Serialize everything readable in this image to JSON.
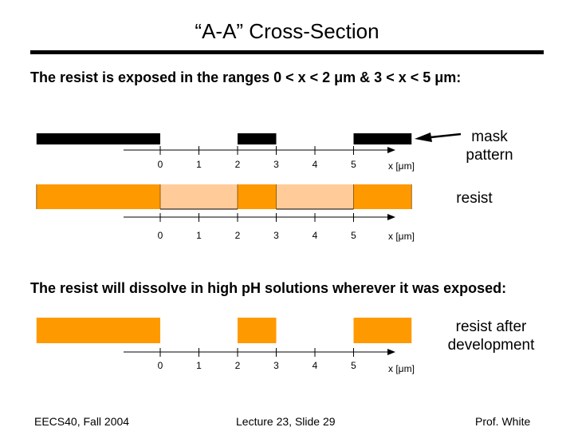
{
  "slide": {
    "title": "“A-A” Cross-Section",
    "intro": "The resist is exposed in the ranges 0 < x < 2 μm & 3 < x < 5 μm:",
    "dissolve_text": "The resist will dissolve in high pH solutions wherever it was exposed:"
  },
  "labels": {
    "mask_line1": "mask",
    "mask_line2": "pattern",
    "resist": "resist",
    "dev_line1": "resist after",
    "dev_line2": "development",
    "axis_unit": "x [μm]"
  },
  "axis": {
    "ticks": [
      "0",
      "1",
      "2",
      "3",
      "4",
      "5"
    ],
    "range": [
      0,
      6
    ]
  },
  "colors": {
    "resist": "#ff9900",
    "exposed": "#ffcc99",
    "mask": "#000000"
  },
  "cross_section": {
    "mask_opaque_x": [
      [
        -3.2,
        0
      ],
      [
        2,
        3
      ],
      [
        5,
        6.5
      ]
    ],
    "exposed_x": [
      [
        0,
        2
      ],
      [
        3,
        5
      ]
    ],
    "resist_extent_x": [
      -3.2,
      6.5
    ],
    "developed_resist_x": [
      [
        -3.2,
        0
      ],
      [
        2,
        3
      ],
      [
        5,
        6.5
      ]
    ]
  },
  "footer": {
    "left": "EECS40, Fall 2004",
    "center": "Lecture 23, Slide 29",
    "right": "Prof. White"
  }
}
